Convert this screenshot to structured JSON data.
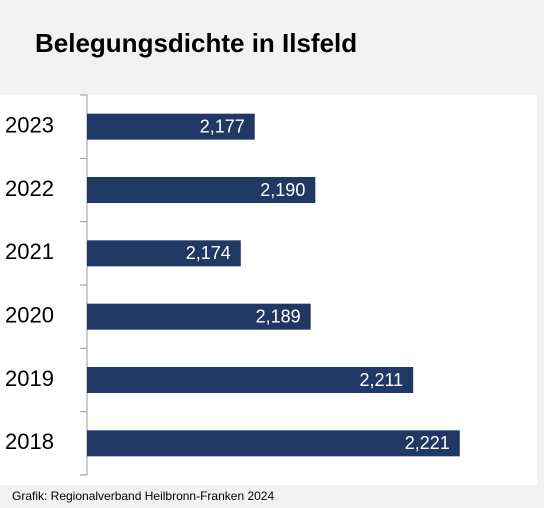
{
  "chart_data": {
    "type": "bar",
    "orientation": "horizontal",
    "title": "Belegungsdichte in Ilsfeld",
    "categories": [
      "2023",
      "2022",
      "2021",
      "2020",
      "2019",
      "2018"
    ],
    "values": [
      2.177,
      2.19,
      2.174,
      2.189,
      2.211,
      2.221
    ],
    "value_labels": [
      "2,177",
      "2,190",
      "2,174",
      "2,189",
      "2,211",
      "2,221"
    ],
    "color": "#203864",
    "xlim": [
      2.141,
      2.238
    ],
    "source": "Grafik: Regionalverband Heilbronn-Franken 2024"
  }
}
